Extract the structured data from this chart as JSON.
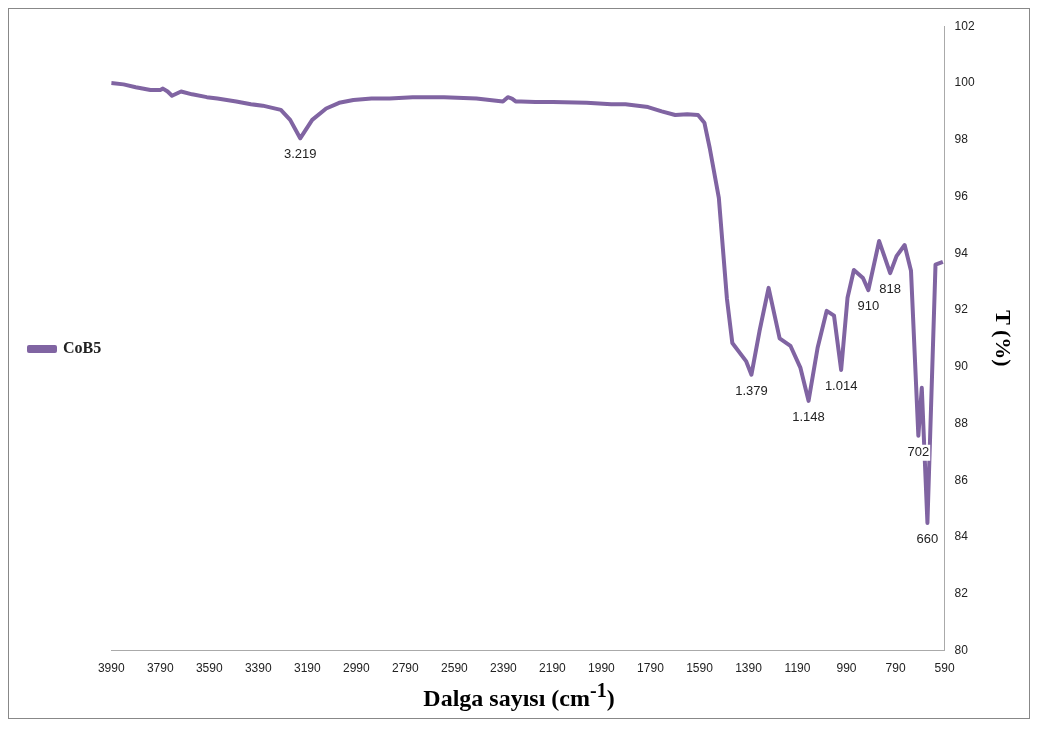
{
  "chart_data": {
    "type": "line",
    "xlabel": "Dalga sayısı (cm$^{-1}$)",
    "ylabel": "T (%)",
    "xlim": [
      3990,
      590
    ],
    "xticks": [
      3990,
      3790,
      3590,
      3390,
      3190,
      2990,
      2790,
      2590,
      2390,
      2190,
      1990,
      1790,
      1590,
      1390,
      1190,
      990,
      790,
      590
    ],
    "ylim": [
      80,
      102
    ],
    "yticks": [
      80,
      82,
      84,
      86,
      88,
      90,
      92,
      94,
      96,
      98,
      100,
      102
    ],
    "grid": false,
    "legend": "left",
    "marker": "none",
    "line_style": "solid",
    "series": [
      {
        "name": "CoB5",
        "color": "#8064a2",
        "x": [
          3990,
          3940,
          3890,
          3830,
          3790,
          3779,
          3760,
          3742,
          3705,
          3660,
          3600,
          3557,
          3480,
          3420,
          3372,
          3298,
          3260,
          3219,
          3170,
          3113,
          3060,
          3002,
          2928,
          2854,
          2760,
          2632,
          2500,
          2392,
          2372,
          2355,
          2340,
          2318,
          2260,
          2188,
          2050,
          1950,
          1892,
          1800,
          1744,
          1689,
          1640,
          1596,
          1570,
          1548,
          1511,
          1478,
          1456,
          1400,
          1378,
          1345,
          1308,
          1263,
          1219,
          1178,
          1145,
          1108,
          1071,
          1041,
          1012,
          986,
          960,
          923,
          901,
          857,
          812,
          786,
          753,
          727,
          697,
          683,
          660,
          627,
          597
        ],
        "values": [
          100.0,
          99.95,
          99.85,
          99.75,
          99.75,
          99.8,
          99.7,
          99.55,
          99.7,
          99.6,
          99.5,
          99.45,
          99.35,
          99.25,
          99.2,
          99.05,
          98.7,
          98.05,
          98.7,
          99.1,
          99.3,
          99.4,
          99.45,
          99.45,
          99.5,
          99.5,
          99.45,
          99.35,
          99.5,
          99.45,
          99.35,
          99.35,
          99.33,
          99.33,
          99.3,
          99.25,
          99.25,
          99.15,
          99.0,
          98.87,
          98.9,
          98.87,
          98.6,
          97.7,
          95.95,
          92.4,
          90.84,
          90.2,
          89.72,
          91.26,
          92.78,
          91.0,
          90.74,
          89.96,
          88.8,
          90.67,
          91.97,
          91.8,
          89.89,
          92.43,
          93.41,
          93.13,
          92.7,
          94.43,
          93.3,
          93.9,
          94.29,
          93.38,
          87.57,
          89.26,
          84.5,
          93.6,
          93.7
        ]
      }
    ],
    "annotations": [
      {
        "text": "3.219",
        "x": 3219,
        "y": 98.05
      },
      {
        "text": "1.379",
        "x": 1378,
        "y": 89.72
      },
      {
        "text": "1.148",
        "x": 1145,
        "y": 88.8
      },
      {
        "text": "1.014",
        "x": 1012,
        "y": 89.89
      },
      {
        "text": "910",
        "x": 901,
        "y": 92.7
      },
      {
        "text": "818",
        "x": 812,
        "y": 93.3
      },
      {
        "text": "702",
        "x": 697,
        "y": 87.57
      },
      {
        "text": "660",
        "x": 660,
        "y": 84.5
      }
    ]
  }
}
